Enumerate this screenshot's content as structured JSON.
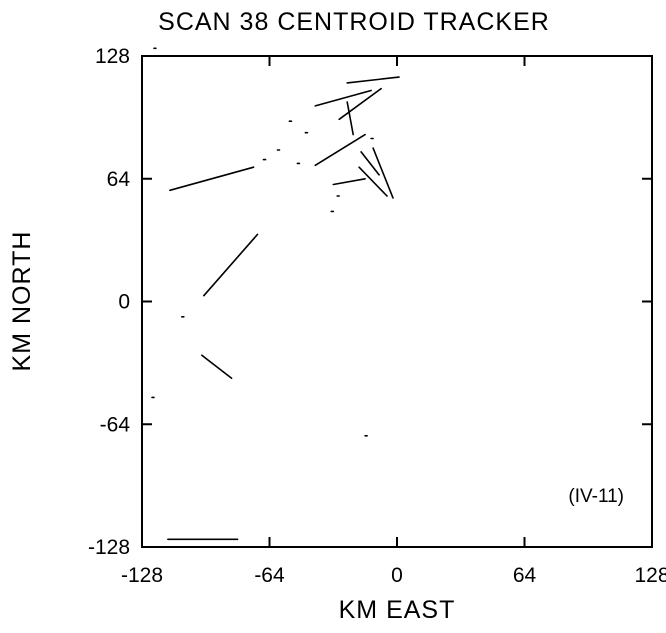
{
  "chart_data": {
    "type": "line",
    "title": "SCAN 38 CENTROID TRACKER",
    "xlabel": "KM EAST",
    "ylabel": "KM NORTH",
    "xlim": [
      -128,
      128
    ],
    "ylim": [
      -128,
      128
    ],
    "xticks": [
      -128,
      -64,
      0,
      64,
      128
    ],
    "yticks": [
      128,
      64,
      0,
      -64,
      -128
    ],
    "annotation": "(IV-11)",
    "grid": false,
    "legend": "none",
    "series": [
      {
        "x": [
          -25,
          1
        ],
        "y": [
          114,
          117
        ]
      },
      {
        "x": [
          -41,
          -13
        ],
        "y": [
          102,
          110
        ]
      },
      {
        "x": [
          -29,
          -8
        ],
        "y": [
          95,
          111
        ]
      },
      {
        "x": [
          -25,
          -22
        ],
        "y": [
          104,
          87
        ]
      },
      {
        "x": [
          -18,
          -9
        ],
        "y": [
          78,
          66
        ]
      },
      {
        "x": [
          -41,
          -16
        ],
        "y": [
          71,
          87
        ]
      },
      {
        "x": [
          -32,
          -16
        ],
        "y": [
          61,
          64
        ]
      },
      {
        "x": [
          -19,
          -5
        ],
        "y": [
          70,
          55
        ]
      },
      {
        "x": [
          -12,
          -2
        ],
        "y": [
          80,
          54
        ]
      },
      {
        "x": [
          -114,
          -72
        ],
        "y": [
          58,
          70
        ]
      },
      {
        "x": [
          -97,
          -70
        ],
        "y": [
          3,
          35
        ]
      },
      {
        "x": [
          -98,
          -83
        ],
        "y": [
          -28,
          -40
        ]
      },
      {
        "x": [
          -115,
          -80
        ],
        "y": [
          -124,
          -124
        ]
      },
      {
        "x": [
          -122,
          -121
        ],
        "y": [
          132,
          132
        ]
      },
      {
        "x": [
          -54,
          -53
        ],
        "y": [
          94,
          94
        ]
      },
      {
        "x": [
          -46,
          -45
        ],
        "y": [
          88,
          88
        ]
      },
      {
        "x": [
          -60,
          -59
        ],
        "y": [
          79,
          79
        ]
      },
      {
        "x": [
          -67,
          -66
        ],
        "y": [
          74,
          74
        ]
      },
      {
        "x": [
          -50,
          -49
        ],
        "y": [
          72,
          72
        ]
      },
      {
        "x": [
          -30,
          -29
        ],
        "y": [
          55,
          55
        ]
      },
      {
        "x": [
          -33,
          -32
        ],
        "y": [
          47,
          47
        ]
      },
      {
        "x": [
          -13,
          -12
        ],
        "y": [
          85,
          85
        ]
      },
      {
        "x": [
          -108,
          -107
        ],
        "y": [
          -8,
          -8
        ]
      },
      {
        "x": [
          -123,
          -122
        ],
        "y": [
          -50,
          -50
        ]
      },
      {
        "x": [
          -16,
          -15
        ],
        "y": [
          -70,
          -70
        ]
      }
    ]
  }
}
